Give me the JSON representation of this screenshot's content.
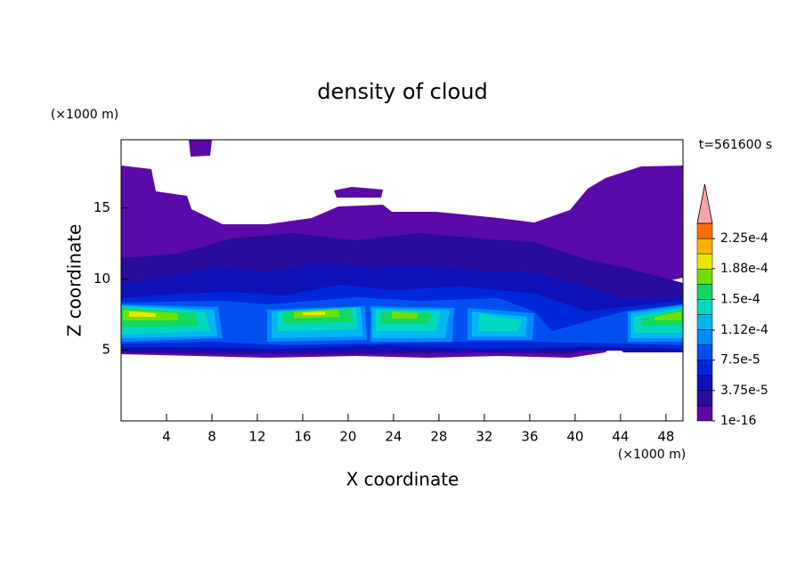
{
  "chart_data": {
    "type": "contour",
    "title": "density of cloud",
    "x_label": "X coordinate",
    "y_label": "Z coordinate",
    "x_unit": "(×1000 m)",
    "y_unit": "(×1000 m)",
    "time_label": "t=561600 s",
    "xlim": [
      0,
      49.5
    ],
    "xticks": [
      4,
      8,
      12,
      16,
      20,
      24,
      28,
      32,
      36,
      40,
      44,
      48
    ],
    "ylim": [
      0,
      19.8
    ],
    "yticks": [
      5,
      10,
      15
    ],
    "colorbar_lim": [
      0,
      0.00024375
    ],
    "colorbar_ticks": [
      1e-16,
      {
        "value": 3.75e-05,
        "label": "3.75e-5"
      },
      {
        "value": 7.5e-05,
        "label": "7.5e-5"
      },
      {
        "value": 0.000112,
        "label": "1.12e-4"
      },
      {
        "value": 0.00015,
        "label": "1.5e-4"
      },
      {
        "value": 0.000188,
        "label": "1.88e-4"
      },
      {
        "value": 0.000225,
        "label": "2.25e-4"
      }
    ],
    "colors": [
      "#5a0aa8",
      "#2a0c9c",
      "#1010b8",
      "#0028d8",
      "#0050f0",
      "#0088ff",
      "#00b8f0",
      "#00d8c0",
      "#10d860",
      "#70e000",
      "#e8e800",
      "#ffb000",
      "#ff7000"
    ],
    "extend_color": "#f4a4a4"
  }
}
